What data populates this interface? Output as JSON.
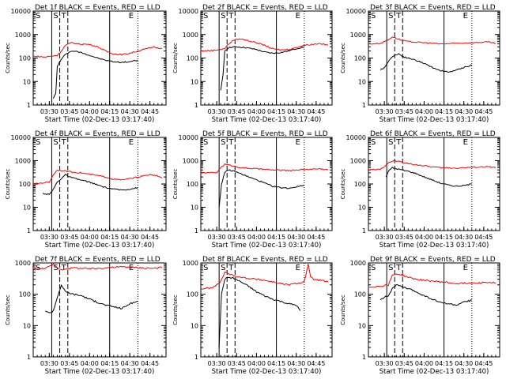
{
  "x_time_labels": [
    "03:30",
    "03:45",
    "04:00",
    "04:15",
    "04:30",
    "04:45"
  ],
  "x_axis_label": "Start Time (02-Dec-13 03:17:40)",
  "y_axis_label": "Counts/sec",
  "y_tick_labels": [
    "1",
    "10",
    "100",
    "1000",
    "10000"
  ],
  "legend_text": "BLACK = Events, RED = LLD",
  "region_markers": {
    "start": "S",
    "trigger": "T",
    "end": "E"
  },
  "colors": {
    "events": "#000000",
    "lld": "#ff0000"
  },
  "chart_data": [
    {
      "type": "line",
      "title": "Det 1f BLACK = Events, RED = LLD",
      "xlabel": "Start Time (02-Dec-13 03:17:40)",
      "ylabel": "Counts/sec",
      "xlim": [
        3.3,
        4.95
      ],
      "ylim": [
        1,
        10000
      ],
      "yscale": "log",
      "markers": {
        "S_T_lines": [
          3.53,
          3.63,
          3.73
        ],
        "E_line": 4.25,
        "dotted": [
          4.6,
          4.95
        ]
      },
      "series": [
        {
          "name": "Events",
          "color": "#000000",
          "x": [
            3.55,
            3.58,
            3.6,
            3.62,
            3.7,
            3.75,
            3.8,
            3.9,
            4.0,
            4.1,
            4.2,
            4.3,
            4.4,
            4.5,
            4.6
          ],
          "y": [
            2,
            3,
            45,
            60,
            150,
            180,
            200,
            170,
            130,
            100,
            80,
            70,
            65,
            70,
            80
          ]
        },
        {
          "name": "LLD",
          "color": "#ff0000",
          "x": [
            3.3,
            3.45,
            3.6,
            3.65,
            3.7,
            3.78,
            3.85,
            4.0,
            4.1,
            4.2,
            4.3,
            4.4,
            4.5,
            4.6,
            4.8,
            4.9
          ],
          "y": [
            120,
            110,
            130,
            200,
            350,
            450,
            400,
            380,
            300,
            200,
            150,
            140,
            160,
            200,
            300,
            250
          ]
        }
      ]
    },
    {
      "type": "line",
      "title": "Det 2f BLACK = Events, RED = LLD",
      "xlabel": "Start Time (02-Dec-13 03:17:40)",
      "ylabel": "Counts/sec",
      "xlim": [
        3.3,
        4.95
      ],
      "ylim": [
        1,
        10000
      ],
      "yscale": "log",
      "markers": {
        "S_T_lines": [
          3.53,
          3.63,
          3.73
        ],
        "E_line": 4.25,
        "dotted": [
          4.6,
          4.95
        ]
      },
      "series": [
        {
          "name": "Events",
          "color": "#000000",
          "x": [
            3.55,
            3.58,
            3.6,
            3.65,
            3.75,
            3.85,
            4.0,
            4.1,
            4.2,
            4.3,
            4.4,
            4.5,
            4.6
          ],
          "y": [
            4,
            20,
            200,
            280,
            300,
            280,
            230,
            180,
            160,
            170,
            200,
            250,
            300
          ]
        },
        {
          "name": "LLD",
          "color": "#ff0000",
          "x": [
            3.3,
            3.45,
            3.6,
            3.65,
            3.72,
            3.8,
            3.9,
            4.0,
            4.1,
            4.2,
            4.3,
            4.4,
            4.5,
            4.6,
            4.8,
            4.9
          ],
          "y": [
            200,
            210,
            250,
            400,
            600,
            650,
            550,
            450,
            350,
            250,
            220,
            230,
            280,
            350,
            420,
            350
          ]
        }
      ]
    },
    {
      "type": "line",
      "title": "Det 3f BLACK = Events, RED = LLD",
      "xlabel": "Start Time (02-Dec-13 03:17:40)",
      "ylabel": "Counts/sec",
      "xlim": [
        3.3,
        4.95
      ],
      "ylim": [
        1,
        10000
      ],
      "yscale": "log",
      "markers": {
        "S_T_lines": [
          3.53,
          3.63,
          3.73
        ],
        "E_line": 4.25,
        "dotted": [
          4.6,
          4.95
        ]
      },
      "series": [
        {
          "name": "Events",
          "color": "#000000",
          "x": [
            3.45,
            3.5,
            3.6,
            3.68,
            3.75,
            3.85,
            4.0,
            4.1,
            4.2,
            4.3,
            4.4,
            4.5,
            4.6
          ],
          "y": [
            30,
            40,
            120,
            150,
            110,
            90,
            60,
            40,
            30,
            25,
            30,
            40,
            50
          ]
        },
        {
          "name": "LLD",
          "color": "#ff0000",
          "x": [
            3.3,
            3.45,
            3.55,
            3.6,
            3.65,
            3.7,
            3.8,
            4.0,
            4.2,
            4.4,
            4.6,
            4.8,
            4.9
          ],
          "y": [
            400,
            420,
            600,
            800,
            700,
            600,
            500,
            450,
            400,
            420,
            450,
            480,
            420
          ]
        }
      ]
    },
    {
      "type": "line",
      "title": "Det 4f BLACK = Events, RED = LLD",
      "xlabel": "Start Time (02-Dec-13 03:17:40)",
      "ylabel": "Counts/sec",
      "xlim": [
        3.3,
        4.95
      ],
      "ylim": [
        1,
        10000
      ],
      "yscale": "log",
      "markers": {
        "S_T_lines": [
          3.53,
          3.63,
          3.73
        ],
        "E_line": 4.25,
        "dotted": [
          4.6,
          4.95
        ]
      },
      "series": [
        {
          "name": "Events",
          "color": "#000000",
          "x": [
            3.42,
            3.5,
            3.55,
            3.6,
            3.7,
            3.75,
            3.85,
            4.0,
            4.1,
            4.2,
            4.3,
            4.4,
            4.5,
            4.6
          ],
          "y": [
            40,
            35,
            60,
            120,
            250,
            200,
            160,
            120,
            90,
            70,
            60,
            55,
            60,
            70
          ]
        },
        {
          "name": "LLD",
          "color": "#ff0000",
          "x": [
            3.3,
            3.4,
            3.5,
            3.55,
            3.6,
            3.65,
            3.72,
            3.8,
            3.9,
            4.0,
            4.1,
            4.2,
            4.3,
            4.4,
            4.5,
            4.6,
            4.75,
            4.85,
            4.9
          ],
          "y": [
            100,
            110,
            120,
            250,
            400,
            380,
            350,
            320,
            300,
            260,
            230,
            200,
            160,
            150,
            170,
            200,
            250,
            220,
            180
          ]
        }
      ]
    },
    {
      "type": "line",
      "title": "Det 5f BLACK = Events, RED = LLD",
      "xlabel": "Start Time (02-Dec-13 03:17:40)",
      "ylabel": "Counts/sec",
      "xlim": [
        3.3,
        4.95
      ],
      "ylim": [
        1,
        10000
      ],
      "yscale": "log",
      "markers": {
        "S_T_lines": [
          3.53,
          3.63,
          3.73
        ],
        "E_line": 4.25,
        "dotted": [
          4.6,
          4.95
        ]
      },
      "series": [
        {
          "name": "Events",
          "color": "#000000",
          "x": [
            3.53,
            3.56,
            3.6,
            3.65,
            3.72,
            3.8,
            3.9,
            4.0,
            4.1,
            4.2,
            4.3,
            4.4,
            4.5,
            4.6
          ],
          "y": [
            10,
            100,
            300,
            400,
            350,
            280,
            200,
            150,
            110,
            80,
            70,
            65,
            75,
            90
          ]
        },
        {
          "name": "LLD",
          "color": "#ff0000",
          "x": [
            3.3,
            3.5,
            3.55,
            3.6,
            3.65,
            3.7,
            3.8,
            4.0,
            4.2,
            4.4,
            4.6,
            4.8,
            4.9
          ],
          "y": [
            300,
            310,
            500,
            700,
            650,
            600,
            500,
            450,
            400,
            380,
            420,
            450,
            400
          ]
        }
      ]
    },
    {
      "type": "line",
      "title": "Det 6f BLACK = Events, RED = LLD",
      "xlabel": "Start Time (02-Dec-13 03:17:40)",
      "ylabel": "Counts/sec",
      "xlim": [
        3.3,
        4.95
      ],
      "ylim": [
        1,
        10000
      ],
      "yscale": "log",
      "markers": {
        "S_T_lines": [
          3.53,
          3.63,
          3.73
        ],
        "E_line": 4.25,
        "dotted": [
          4.6,
          4.95
        ]
      },
      "series": [
        {
          "name": "Events",
          "color": "#000000",
          "x": [
            3.52,
            3.55,
            3.6,
            3.65,
            3.72,
            3.8,
            3.9,
            4.0,
            4.1,
            4.2,
            4.3,
            4.4,
            4.5,
            4.6
          ],
          "y": [
            200,
            350,
            500,
            450,
            400,
            350,
            280,
            200,
            150,
            110,
            90,
            80,
            85,
            100
          ]
        },
        {
          "name": "LLD",
          "color": "#ff0000",
          "x": [
            3.3,
            3.45,
            3.55,
            3.62,
            3.7,
            3.8,
            4.0,
            4.2,
            4.4,
            4.6,
            4.8,
            4.9
          ],
          "y": [
            400,
            420,
            800,
            1000,
            900,
            750,
            600,
            500,
            480,
            520,
            550,
            500
          ]
        }
      ]
    },
    {
      "type": "line",
      "title": "Det 7f BLACK = Events, RED = LLD",
      "xlabel": "Start Time (02-Dec-13 03:17:40)",
      "ylabel": "Counts/sec",
      "xlim": [
        3.3,
        4.95
      ],
      "ylim": [
        1,
        1000
      ],
      "yscale": "log",
      "markers": {
        "S_T_lines": [
          3.53,
          3.63,
          3.73
        ],
        "E_line": 4.25,
        "dotted": [
          4.6,
          4.95
        ]
      },
      "series": [
        {
          "name": "Events",
          "color": "#000000",
          "x": [
            3.45,
            3.5,
            3.55,
            3.6,
            3.65,
            3.7,
            3.8,
            3.9,
            4.0,
            4.1,
            4.2,
            4.3,
            4.4,
            4.5,
            4.6
          ],
          "y": [
            30,
            25,
            30,
            80,
            200,
            120,
            100,
            90,
            70,
            55,
            45,
            40,
            35,
            50,
            60
          ]
        },
        {
          "name": "LLD",
          "color": "#ff0000",
          "x": [
            3.3,
            3.4,
            3.5,
            3.55,
            3.6,
            3.65,
            3.7,
            3.8,
            4.0,
            4.2,
            4.4,
            4.6,
            4.8,
            4.9
          ],
          "y": [
            700,
            650,
            750,
            900,
            700,
            600,
            650,
            700,
            650,
            700,
            750,
            700,
            680,
            720
          ]
        }
      ]
    },
    {
      "type": "line",
      "title": "Det 8f BLACK = Events, RED = LLD",
      "xlabel": "Start Time (02-Dec-13 03:17:40)",
      "ylabel": "Counts/sec",
      "xlim": [
        3.3,
        4.95
      ],
      "ylim": [
        1,
        1000
      ],
      "yscale": "log",
      "markers": {
        "S_T_lines": [
          3.53,
          3.63,
          3.73
        ],
        "E_line": 4.25,
        "dotted": [
          4.6,
          4.95
        ]
      },
      "series": [
        {
          "name": "Events",
          "color": "#000000",
          "x": [
            3.53,
            3.56,
            3.6,
            3.65,
            3.72,
            3.8,
            3.9,
            4.0,
            4.1,
            4.2,
            4.3,
            4.4,
            4.5,
            4.55
          ],
          "y": [
            2,
            100,
            300,
            350,
            320,
            250,
            180,
            120,
            90,
            70,
            60,
            50,
            45,
            30
          ]
        },
        {
          "name": "LLD",
          "color": "#ff0000",
          "x": [
            3.3,
            3.45,
            3.55,
            3.6,
            3.65,
            3.7,
            3.8,
            3.9,
            4.0,
            4.1,
            4.2,
            4.3,
            4.4,
            4.5,
            4.6,
            4.65,
            4.68,
            4.72,
            4.8,
            4.9
          ],
          "y": [
            150,
            160,
            250,
            500,
            450,
            400,
            350,
            320,
            300,
            280,
            250,
            220,
            200,
            220,
            250,
            900,
            350,
            300,
            280,
            250
          ]
        }
      ]
    },
    {
      "type": "line",
      "title": "Det 9f BLACK = Events, RED = LLD",
      "xlabel": "Start Time (02-Dec-13 03:17:40)",
      "ylabel": "Counts/sec",
      "xlim": [
        3.3,
        4.95
      ],
      "ylim": [
        1,
        1000
      ],
      "yscale": "log",
      "markers": {
        "S_T_lines": [
          3.53,
          3.63,
          3.73
        ],
        "E_line": 4.25,
        "dotted": [
          4.6,
          4.95
        ]
      },
      "series": [
        {
          "name": "Events",
          "color": "#000000",
          "x": [
            3.45,
            3.5,
            3.55,
            3.6,
            3.65,
            3.7,
            3.8,
            3.9,
            4.0,
            4.1,
            4.2,
            4.3,
            4.4,
            4.5,
            4.6
          ],
          "y": [
            70,
            80,
            90,
            150,
            200,
            180,
            150,
            120,
            90,
            70,
            55,
            50,
            45,
            55,
            65
          ]
        },
        {
          "name": "LLD",
          "color": "#ff0000",
          "x": [
            3.3,
            3.45,
            3.55,
            3.6,
            3.65,
            3.7,
            3.8,
            3.9,
            4.0,
            4.2,
            4.4,
            4.6,
            4.8,
            4.9
          ],
          "y": [
            170,
            180,
            200,
            400,
            450,
            420,
            350,
            300,
            280,
            250,
            220,
            230,
            240,
            230
          ]
        }
      ]
    }
  ]
}
